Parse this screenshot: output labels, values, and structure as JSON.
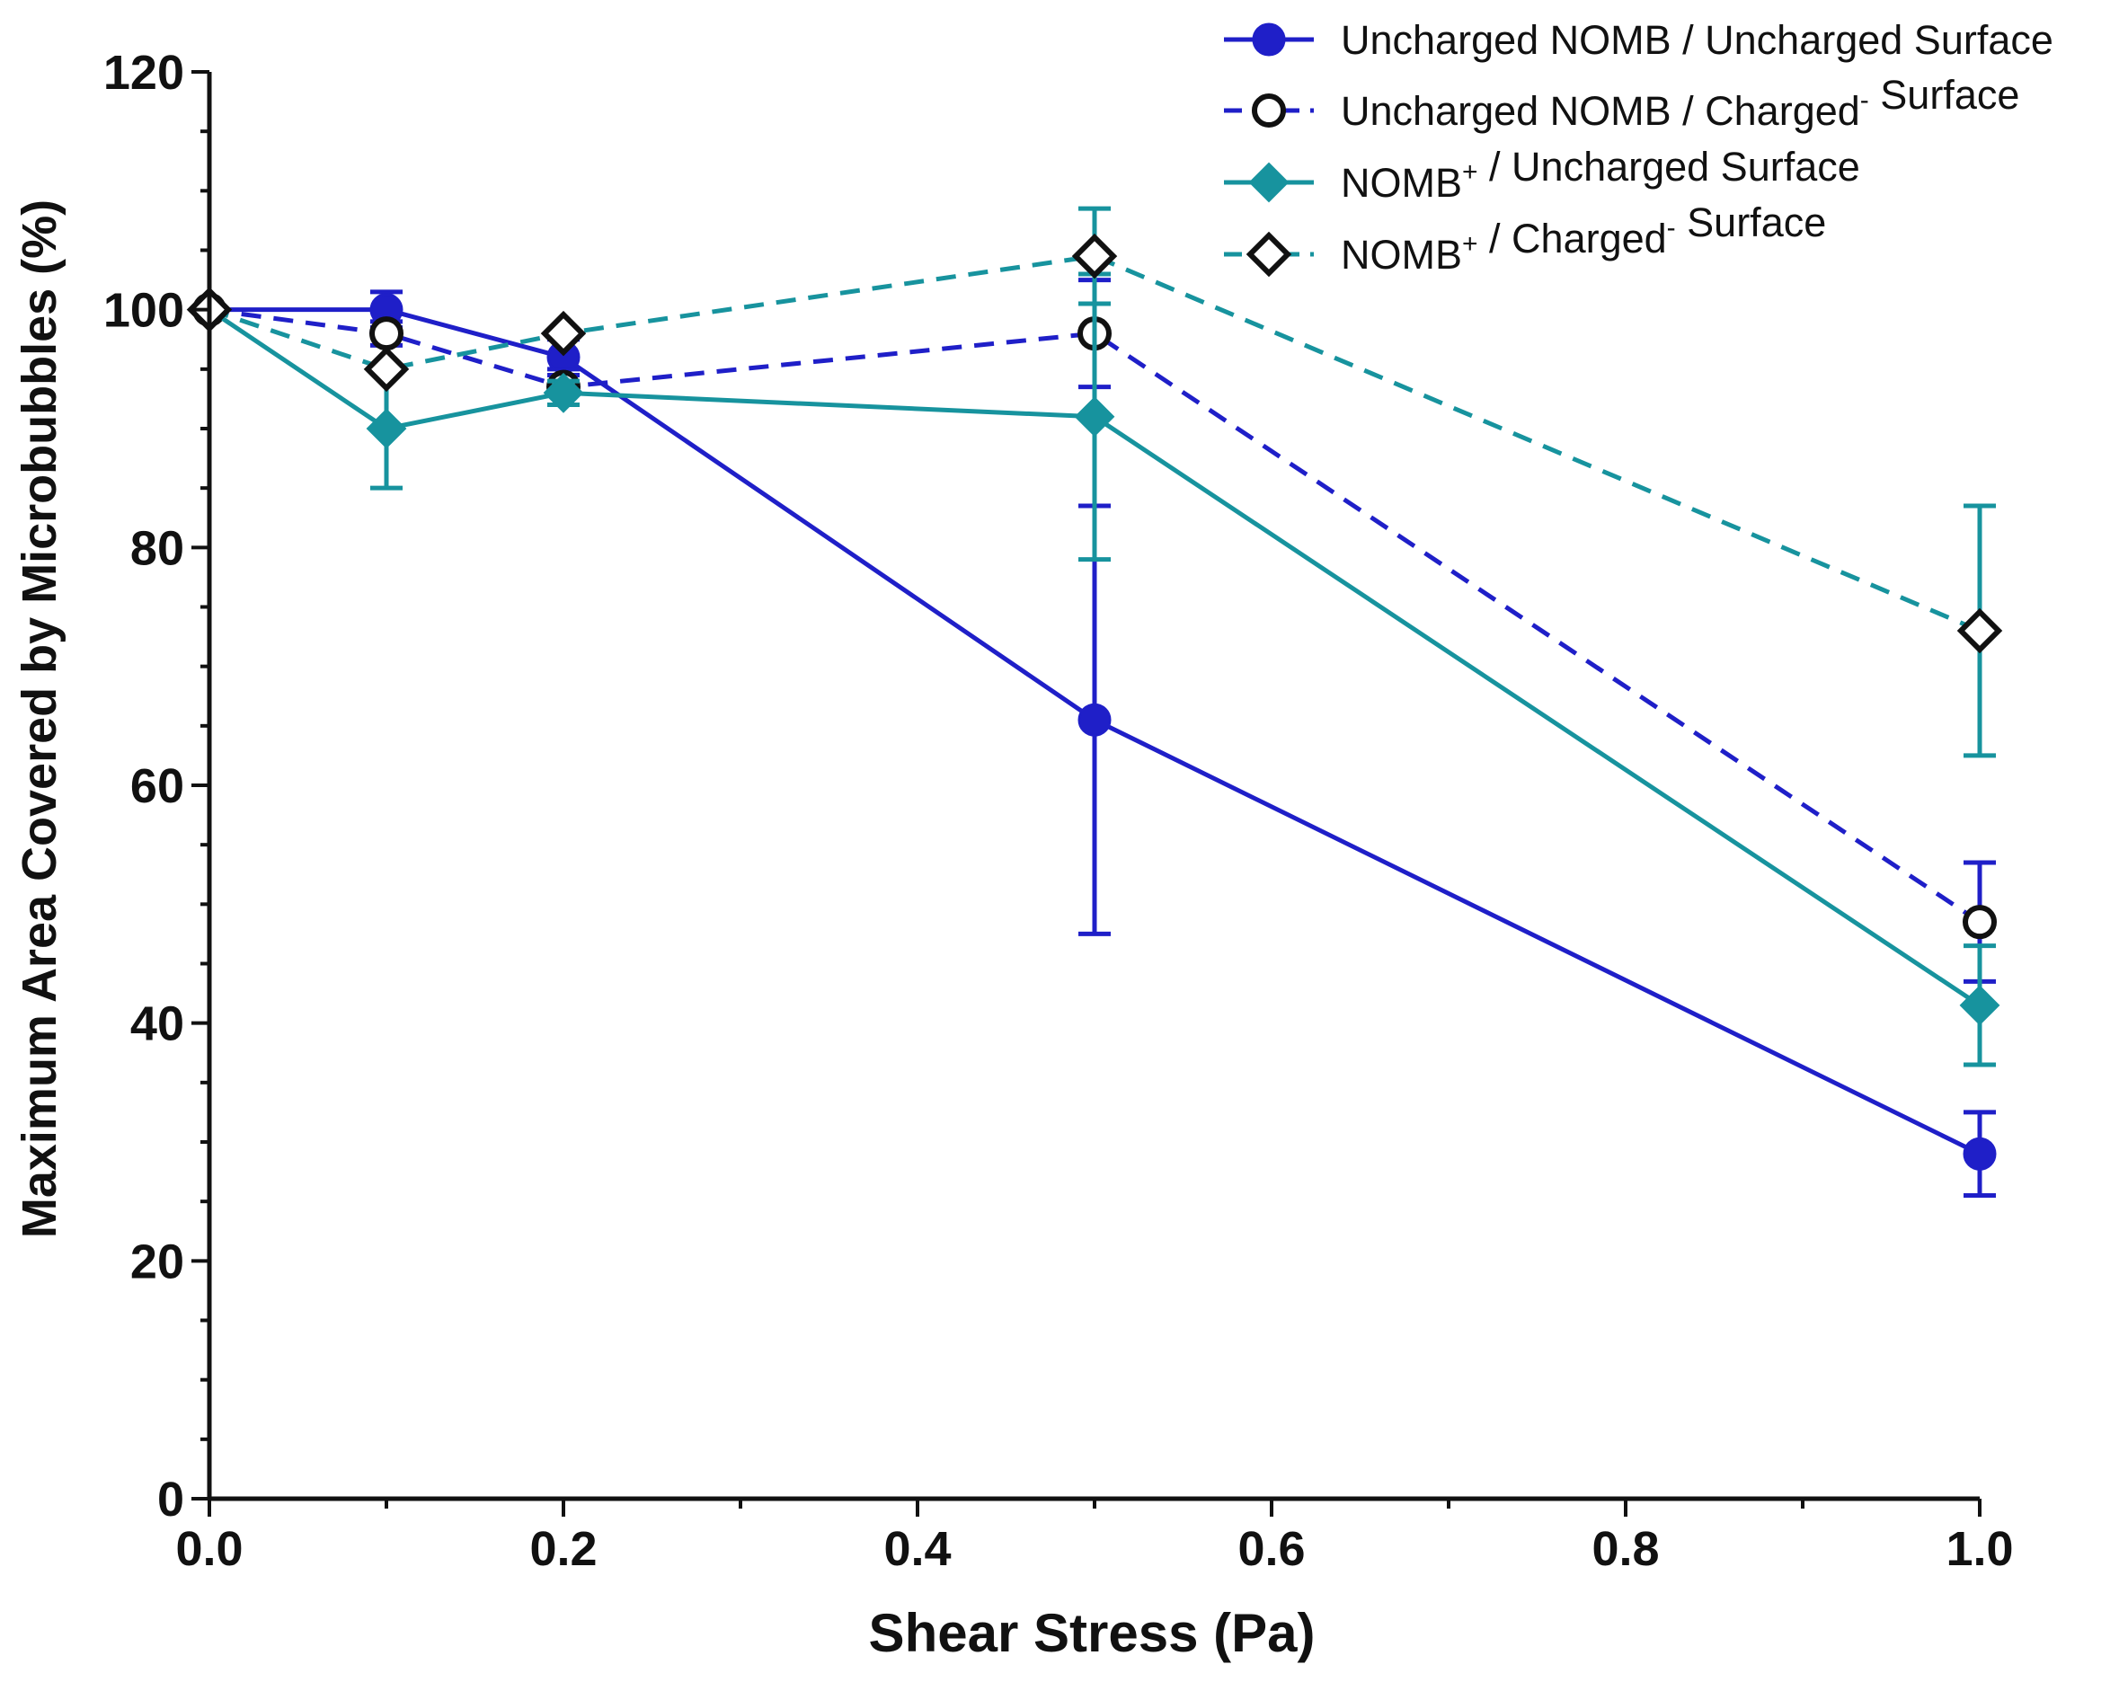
{
  "chart_data": {
    "type": "line",
    "xlabel": "Shear Stress (Pa)",
    "ylabel": "Maximum Area Covered by Microbubbles (%)",
    "xlim": [
      0,
      1.0
    ],
    "ylim": [
      0,
      120
    ],
    "x_ticks": [
      "0.0",
      "0.2",
      "0.4",
      "0.6",
      "0.8",
      "1.0"
    ],
    "y_ticks": [
      "0",
      "20",
      "40",
      "60",
      "80",
      "100",
      "120"
    ],
    "grid": false,
    "legend_position": "top-right",
    "series": [
      {
        "name": "Uncharged NOMB / Uncharged Surface",
        "legend_parts": [
          "Uncharged NOMB / Uncharged Surface"
        ],
        "color": "#1f1fc8",
        "line": "solid",
        "marker": "filled-circle",
        "x": [
          0,
          0.1,
          0.2,
          0.5,
          1.0
        ],
        "y": [
          100,
          100,
          96,
          65.5,
          29
        ],
        "error": [
          0,
          1.5,
          1.5,
          18,
          3.5
        ]
      },
      {
        "name": "Uncharged NOMB / Charged⁻ Surface",
        "legend_parts": [
          "Uncharged NOMB / Charged",
          "-",
          " Surface"
        ],
        "color": "#1f1fc8",
        "line": "dashed",
        "marker": "open-circle",
        "x": [
          0,
          0.1,
          0.2,
          0.5,
          1.0
        ],
        "y": [
          100,
          98,
          93.5,
          98,
          48.5
        ],
        "error": [
          0,
          1,
          1.5,
          4.5,
          5
        ]
      },
      {
        "name": "NOMB⁺ / Uncharged Surface",
        "legend_parts": [
          "NOMB",
          "+",
          " / Uncharged Surface"
        ],
        "color": "#17939e",
        "line": "solid",
        "marker": "filled-diamond",
        "x": [
          0,
          0.1,
          0.2,
          0.5,
          1.0
        ],
        "y": [
          100,
          90,
          93,
          91,
          41.5
        ],
        "error": [
          0,
          5,
          1,
          12,
          5
        ]
      },
      {
        "name": "NOMB⁺ / Charged⁻ Surface",
        "legend_parts": [
          "NOMB",
          "+",
          " / Charged",
          "-",
          " Surface"
        ],
        "color": "#17939e",
        "line": "dashed",
        "marker": "open-diamond",
        "x": [
          0,
          0.1,
          0.2,
          0.5,
          1.0
        ],
        "y": [
          100,
          95,
          98,
          104.5,
          73
        ],
        "error": [
          0,
          0,
          0,
          4,
          10.5
        ]
      }
    ]
  }
}
